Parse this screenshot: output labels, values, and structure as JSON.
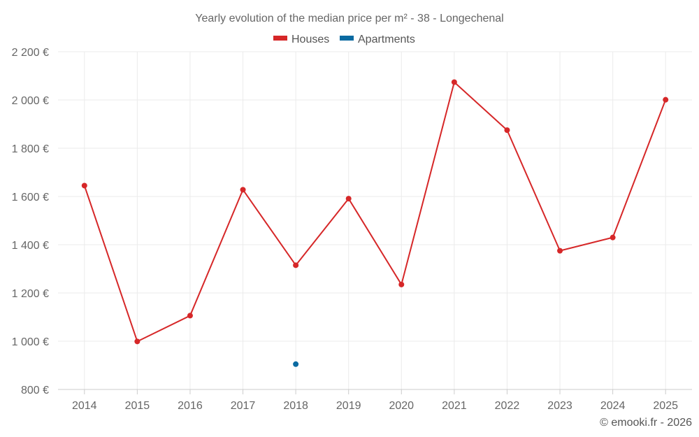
{
  "chart_data": {
    "type": "line",
    "title": "Yearly evolution of the median price per m² - 38 - Longechenal",
    "categories": [
      "2014",
      "2015",
      "2016",
      "2017",
      "2018",
      "2019",
      "2020",
      "2021",
      "2022",
      "2023",
      "2024",
      "2025"
    ],
    "series": [
      {
        "name": "Houses",
        "color": "#d62728",
        "values": [
          1645,
          999,
          1106,
          1628,
          1315,
          1591,
          1235,
          2074,
          1875,
          1375,
          1430,
          2001
        ]
      },
      {
        "name": "Apartments",
        "color": "#0a6aa1",
        "values": [
          null,
          null,
          null,
          null,
          905,
          null,
          null,
          null,
          null,
          null,
          null,
          null
        ]
      }
    ],
    "y_ticks": [
      "800 €",
      "1 000 €",
      "1 200 €",
      "1 400 €",
      "1 600 €",
      "1 800 €",
      "2 000 €",
      "2 200 €"
    ],
    "y_tick_values": [
      800,
      1000,
      1200,
      1400,
      1600,
      1800,
      2000,
      2200
    ],
    "ylim": [
      800,
      2200
    ],
    "xlabel": "",
    "ylabel": "",
    "grid": true,
    "legend": "top-center"
  },
  "credit": "© emooki.fr - 2026"
}
